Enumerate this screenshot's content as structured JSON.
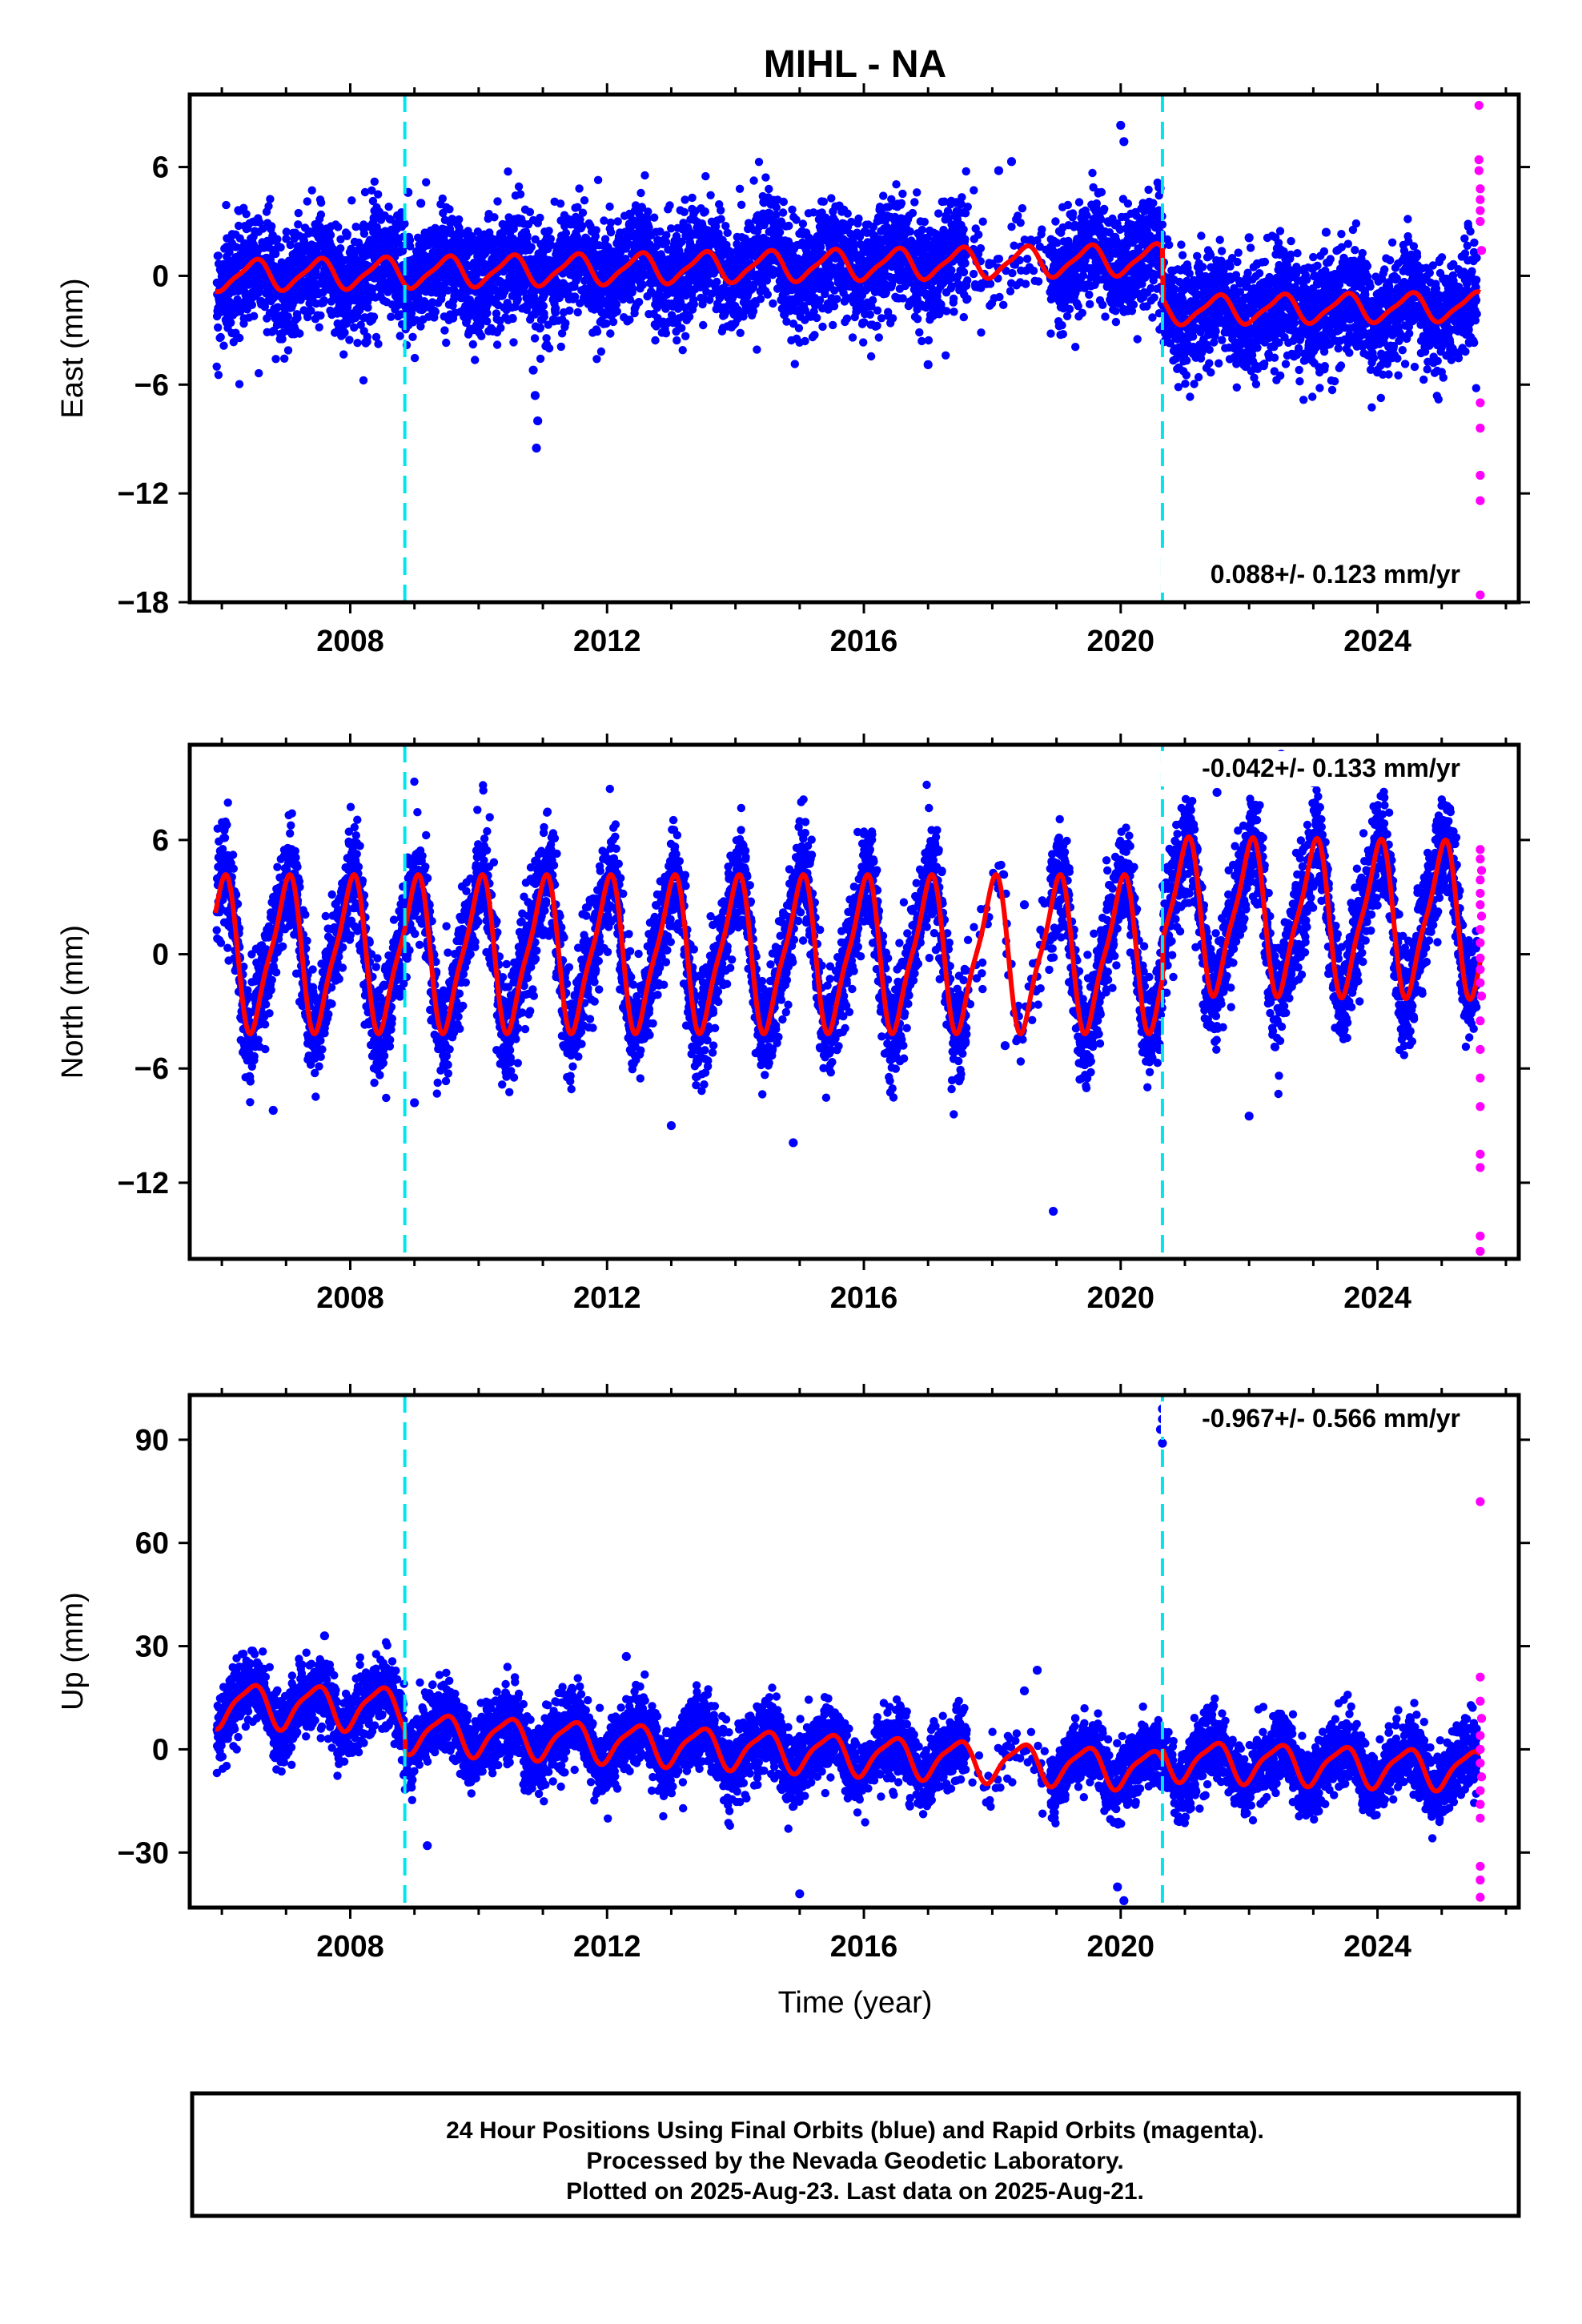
{
  "title": "MIHL - NA",
  "x_axis": {
    "label": "Time (year)",
    "ticks": [
      "2008",
      "2012",
      "2016",
      "2020",
      "2024"
    ]
  },
  "footer": {
    "lines": [
      "24 Hour Positions Using Final Orbits (blue) and Rapid Orbits (magenta).",
      "Processed by the Nevada Geodetic Laboratory.",
      "Plotted on 2025-Aug-23. Last data on 2025-Aug-21."
    ]
  },
  "colors": {
    "final_orbits": "#0000ff",
    "rapid_orbits": "#ff00ff",
    "model": "#ff0000",
    "equipment_change": "#00e5ee"
  },
  "chart_data": [
    {
      "type": "scatter",
      "component": "east",
      "ylabel": "East (mm)",
      "ylim": [
        -18,
        10
      ],
      "yticks": [
        "6",
        "0",
        "−6",
        "−12",
        "−18"
      ],
      "xlim": [
        2005.5,
        2026.2
      ],
      "rate_label": "0.088+/- 0.123 mm/yr",
      "rate_position": "bottom-right",
      "equipment_changes": [
        2008.85,
        2020.65
      ],
      "model": {
        "segments": [
          {
            "from": 2005.9,
            "to": 2020.65,
            "offset_start": 0.0,
            "offset_end": 0.9,
            "amplitude": 0.8,
            "phase": 0.5
          },
          {
            "from": 2020.65,
            "to": 2025.6,
            "offset_start": -1.9,
            "offset_end": -1.7,
            "amplitude": 0.75,
            "phase": 0.5
          }
        ]
      },
      "final_orbits_scatter": {
        "sd": 1.5,
        "gap": [
          2017.6,
          2018.9
        ],
        "outliers": [
          [
            2010.9,
            -9.5
          ],
          [
            2010.92,
            -8.0
          ],
          [
            2010.88,
            -6.6
          ],
          [
            2010.85,
            -5.2
          ],
          [
            2008.9,
            4.6
          ],
          [
            2009.1,
            4.0
          ],
          [
            2018.3,
            6.3
          ],
          [
            2018.1,
            5.8
          ],
          [
            2020.0,
            8.3
          ],
          [
            2020.05,
            7.4
          ],
          [
            2017.0,
            -4.9
          ],
          [
            2022.0,
            2.1
          ],
          [
            2023.2,
            2.4
          ]
        ]
      },
      "rapid_orbits": [
        [
          2025.58,
          9.4
        ],
        [
          2025.58,
          6.4
        ],
        [
          2025.58,
          5.8
        ],
        [
          2025.6,
          4.8
        ],
        [
          2025.6,
          4.2
        ],
        [
          2025.6,
          3.6
        ],
        [
          2025.6,
          3.0
        ],
        [
          2025.62,
          1.4
        ],
        [
          2025.6,
          -7.0
        ],
        [
          2025.6,
          -8.4
        ],
        [
          2025.6,
          -11.0
        ],
        [
          2025.6,
          -12.4
        ],
        [
          2025.6,
          -17.6
        ]
      ]
    },
    {
      "type": "scatter",
      "component": "north",
      "ylabel": "North (mm)",
      "ylim": [
        -16,
        11
      ],
      "yticks": [
        "6",
        "0",
        "−6",
        "−12"
      ],
      "xlim": [
        2005.5,
        2026.2
      ],
      "rate_label": "-0.042+/- 0.133 mm/yr",
      "rate_position": "top-right",
      "equipment_changes": [
        2008.85,
        2020.65
      ],
      "model": {
        "segments": [
          {
            "from": 2005.9,
            "to": 2020.65,
            "offset_start": 0.0,
            "offset_end": 0.0,
            "amplitude": 3.8,
            "phase": 0.0
          },
          {
            "from": 2020.65,
            "to": 2025.6,
            "offset_start": 2.0,
            "offset_end": 1.8,
            "amplitude": 3.8,
            "phase": 0.0
          }
        ]
      },
      "final_orbits_scatter": {
        "sd": 1.4,
        "gap": [
          2017.6,
          2018.9
        ],
        "outliers": [
          [
            2014.9,
            -9.9
          ],
          [
            2018.95,
            -13.5
          ],
          [
            2013.0,
            -9.0
          ],
          [
            2022.0,
            -8.5
          ],
          [
            2023.0,
            9.0
          ],
          [
            2022.5,
            10.5
          ],
          [
            2006.8,
            -8.2
          ],
          [
            2009.0,
            -7.8
          ],
          [
            2017.5,
            -6.5
          ],
          [
            2021.5,
            8.5
          ],
          [
            2018.2,
            -4.8
          ],
          [
            2018.5,
            2.6
          ]
        ]
      },
      "rapid_orbits": [
        [
          2025.6,
          5.5
        ],
        [
          2025.6,
          5.0
        ],
        [
          2025.62,
          4.4
        ],
        [
          2025.6,
          3.9
        ],
        [
          2025.6,
          3.2
        ],
        [
          2025.6,
          2.6
        ],
        [
          2025.62,
          2.0
        ],
        [
          2025.6,
          1.3
        ],
        [
          2025.6,
          0.6
        ],
        [
          2025.6,
          -0.2
        ],
        [
          2025.6,
          -0.8
        ],
        [
          2025.6,
          -1.5
        ],
        [
          2025.62,
          -2.2
        ],
        [
          2025.6,
          -3.5
        ],
        [
          2025.6,
          -5.0
        ],
        [
          2025.6,
          -6.5
        ],
        [
          2025.6,
          -8.0
        ],
        [
          2025.6,
          -10.5
        ],
        [
          2025.6,
          -11.2
        ],
        [
          2025.6,
          -14.8
        ],
        [
          2025.6,
          -15.6
        ]
      ]
    },
    {
      "type": "scatter",
      "component": "up",
      "ylabel": "Up (mm)",
      "ylim": [
        -46,
        103
      ],
      "yticks": [
        "90",
        "60",
        "30",
        "0",
        "−30"
      ],
      "xlim": [
        2005.5,
        2026.2
      ],
      "xlabel": "Time (year)",
      "rate_label": "-0.967+/- 0.566 mm/yr",
      "rate_position": "top-right",
      "equipment_changes": [
        2008.85,
        2020.65
      ],
      "model": {
        "segments": [
          {
            "from": 2005.9,
            "to": 2008.85,
            "offset_start": 13.0,
            "offset_end": 12.0,
            "amplitude": 6.0,
            "phase": 0.45
          },
          {
            "from": 2008.85,
            "to": 2020.65,
            "offset_start": 5.0,
            "offset_end": -6.0,
            "amplitude": 5.5,
            "phase": 0.45
          },
          {
            "from": 2020.65,
            "to": 2025.6,
            "offset_start": -3.0,
            "offset_end": -6.0,
            "amplitude": 5.5,
            "phase": 0.45
          }
        ]
      },
      "final_orbits_scatter": {
        "sd": 5.0,
        "gap": [
          2017.6,
          2018.9
        ],
        "outliers": [
          [
            2020.65,
            99.0
          ],
          [
            2020.65,
            96.0
          ],
          [
            2020.62,
            93.0
          ],
          [
            2020.65,
            89.0
          ],
          [
            2015.0,
            -42.0
          ],
          [
            2020.05,
            -44.0
          ],
          [
            2019.95,
            -40.0
          ],
          [
            2018.7,
            23.0
          ],
          [
            2018.5,
            17.0
          ],
          [
            2007.6,
            33.0
          ],
          [
            2012.3,
            27.0
          ],
          [
            2009.2,
            -28.0
          ]
        ]
      },
      "rapid_orbits": [
        [
          2025.6,
          72.0
        ],
        [
          2025.6,
          21.0
        ],
        [
          2025.6,
          14.0
        ],
        [
          2025.62,
          9.0
        ],
        [
          2025.6,
          4.0
        ],
        [
          2025.6,
          0.0
        ],
        [
          2025.6,
          -4.0
        ],
        [
          2025.62,
          -8.0
        ],
        [
          2025.6,
          -12.0
        ],
        [
          2025.6,
          -16.0
        ],
        [
          2025.6,
          -20.0
        ],
        [
          2025.6,
          -34.0
        ],
        [
          2025.6,
          -38.0
        ],
        [
          2025.6,
          -43.0
        ]
      ]
    }
  ]
}
